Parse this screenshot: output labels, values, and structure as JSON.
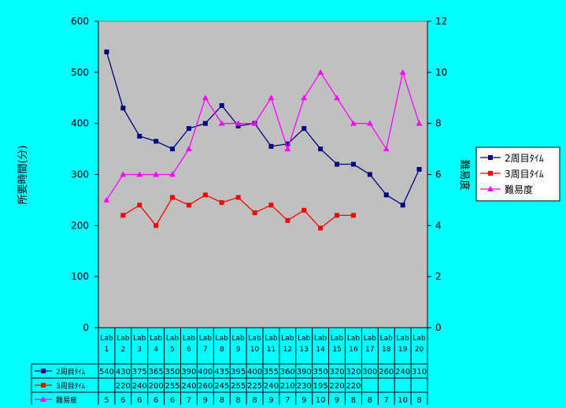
{
  "chart_data": {
    "type": "line",
    "ylabel": "所要時間(分)",
    "y2label": "難易度",
    "ylim": [
      0,
      600
    ],
    "y2lim": [
      0,
      12
    ],
    "yticks": [
      0,
      100,
      200,
      300,
      400,
      500,
      600
    ],
    "y2ticks": [
      0,
      2,
      4,
      6,
      8,
      10,
      12
    ],
    "grid": false,
    "legend_position": "right",
    "data_table": true,
    "categories": [
      "Lab 1",
      "Lab 2",
      "Lab 3",
      "Lab 4",
      "Lab 5",
      "Lab 6",
      "Lab 7",
      "Lab 8",
      "Lab 9",
      "Lab 10",
      "Lab 11",
      "Lab 12",
      "Lab 13",
      "Lab 14",
      "Lab 15",
      "Lab 16",
      "Lab 17",
      "Lab 18",
      "Lab 19",
      "Lab 20"
    ],
    "series": [
      {
        "name": "2周目ﾀｲﾑ",
        "axis": "left",
        "color": "#000080",
        "marker": "square",
        "values": [
          540,
          430,
          375,
          365,
          350,
          390,
          400,
          435,
          395,
          400,
          355,
          360,
          390,
          350,
          320,
          320,
          300,
          260,
          240,
          310
        ]
      },
      {
        "name": "3周目ﾀｲﾑ",
        "axis": "left",
        "color": "#ff0000",
        "marker": "square",
        "values": [
          null,
          220,
          240,
          200,
          255,
          240,
          260,
          245,
          255,
          225,
          240,
          210,
          230,
          195,
          220,
          220,
          null,
          null,
          null,
          null
        ]
      },
      {
        "name": "難易度",
        "axis": "right",
        "color": "#ff00ff",
        "marker": "triangle",
        "values": [
          5,
          6,
          6,
          6,
          6,
          7,
          9,
          8,
          8,
          8,
          9,
          7,
          9,
          10,
          9,
          8,
          8,
          7,
          10,
          8
        ]
      }
    ]
  }
}
